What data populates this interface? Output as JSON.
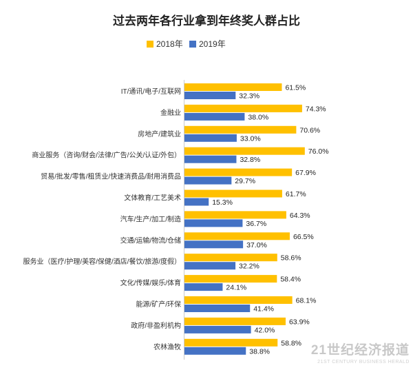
{
  "chart_data": {
    "type": "bar",
    "orientation": "horizontal",
    "title": "过去两年各行业拿到年终奖人群占比",
    "legend_position": "top",
    "value_suffix": "%",
    "grid": false,
    "xlim": [
      0,
      100
    ],
    "categories": [
      "IT/通讯/电子/互联网",
      "金融业",
      "房地产/建筑业",
      "商业服务（咨询/财会/法律/广告/公关/认证/外包）",
      "贸易/批发/零售/租赁业/快速消费品/耐用消费品",
      "文体教育/工艺美术",
      "汽车/生产/加工/制造",
      "交通/运输/物流/仓储",
      "服务业（医疗/护理/美容/保健/酒店/餐饮/旅游/度假）",
      "文化/传媒/娱乐/体育",
      "能源/矿产/环保",
      "政府/非盈利机构",
      "农林渔牧"
    ],
    "series": [
      {
        "name": "2018年",
        "color": "#FFC000",
        "values": [
          61.5,
          74.3,
          70.6,
          76.0,
          67.9,
          61.7,
          64.3,
          66.5,
          58.6,
          58.4,
          68.1,
          63.9,
          58.8
        ]
      },
      {
        "name": "2019年",
        "color": "#4472C4",
        "values": [
          32.3,
          38.0,
          33.0,
          32.8,
          29.7,
          15.3,
          36.7,
          37.0,
          32.2,
          24.1,
          41.4,
          42.0,
          38.8
        ]
      }
    ]
  },
  "watermark": {
    "text_cn": "21世纪经济报道",
    "text_en": "21ST CENTURY BUSINESS HERALD"
  }
}
